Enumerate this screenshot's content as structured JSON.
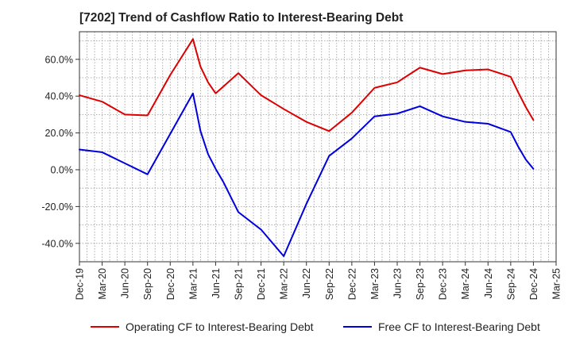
{
  "chart_data": {
    "type": "line",
    "title": "[7202]  Trend of Cashflow Ratio to Interest-Bearing Debt",
    "xlabel": "",
    "ylabel": "",
    "ylim": [
      -50,
      75
    ],
    "y_ticks": [
      -40,
      -20,
      0,
      20,
      40,
      60
    ],
    "y_tick_format": "percent_1dp",
    "x_ticks": [
      "Dec-19",
      "Mar-20",
      "Jun-20",
      "Sep-20",
      "Dec-20",
      "Mar-21",
      "Jun-21",
      "Sep-21",
      "Dec-21",
      "Mar-22",
      "Jun-22",
      "Sep-22",
      "Dec-22",
      "Mar-23",
      "Jun-23",
      "Sep-23",
      "Dec-23",
      "Mar-24",
      "Jun-24",
      "Sep-24",
      "Dec-24",
      "Mar-25"
    ],
    "grid": true,
    "legend_position": "bottom",
    "series": [
      {
        "name": "Operating CF to Interest-Bearing Debt",
        "color": "#dd0000",
        "points": [
          [
            "Dec-19",
            40.5
          ],
          [
            "Mar-20",
            37
          ],
          [
            "Jun-20",
            30
          ],
          [
            "Sep-20",
            29.5
          ],
          [
            "Dec-20",
            51.5
          ],
          [
            "Mar-21",
            71
          ],
          [
            "Apr-21",
            56
          ],
          [
            "May-21",
            47.5
          ],
          [
            "Jun-21",
            41.5
          ],
          [
            "Sep-21",
            52.5
          ],
          [
            "Dec-21",
            40.5
          ],
          [
            "Mar-22",
            33
          ],
          [
            "Jun-22",
            26
          ],
          [
            "Sep-22",
            21
          ],
          [
            "Dec-22",
            31
          ],
          [
            "Mar-23",
            44.5
          ],
          [
            "Jun-23",
            47.5
          ],
          [
            "Sep-23",
            55.5
          ],
          [
            "Dec-23",
            52
          ],
          [
            "Mar-24",
            54
          ],
          [
            "Jun-24",
            54.5
          ],
          [
            "Sep-24",
            50.5
          ],
          [
            "Oct-24",
            42
          ],
          [
            "Nov-24",
            34
          ],
          [
            "Dec-24",
            27
          ]
        ]
      },
      {
        "name": "Free CF to Interest-Bearing Debt",
        "color": "#0000dd",
        "points": [
          [
            "Dec-19",
            11
          ],
          [
            "Mar-20",
            9.5
          ],
          [
            "Jun-20",
            3.5
          ],
          [
            "Sep-20",
            -2.5
          ],
          [
            "Dec-20",
            19.5
          ],
          [
            "Mar-21",
            41.5
          ],
          [
            "Apr-21",
            21
          ],
          [
            "May-21",
            8.5
          ],
          [
            "Jun-21",
            0.5
          ],
          [
            "Jul-21",
            -6.5
          ],
          [
            "Sep-21",
            -23
          ],
          [
            "Dec-21",
            -32.5
          ],
          [
            "Mar-22",
            -47
          ],
          [
            "Jun-22",
            -18.5
          ],
          [
            "Sep-22",
            7.5
          ],
          [
            "Dec-22",
            17
          ],
          [
            "Mar-23",
            29
          ],
          [
            "Jun-23",
            30.5
          ],
          [
            "Sep-23",
            34.5
          ],
          [
            "Dec-23",
            29
          ],
          [
            "Mar-24",
            26
          ],
          [
            "Jun-24",
            25
          ],
          [
            "Sep-24",
            20.5
          ],
          [
            "Oct-24",
            12.5
          ],
          [
            "Nov-24",
            5.5
          ],
          [
            "Dec-24",
            0.5
          ]
        ]
      }
    ]
  }
}
